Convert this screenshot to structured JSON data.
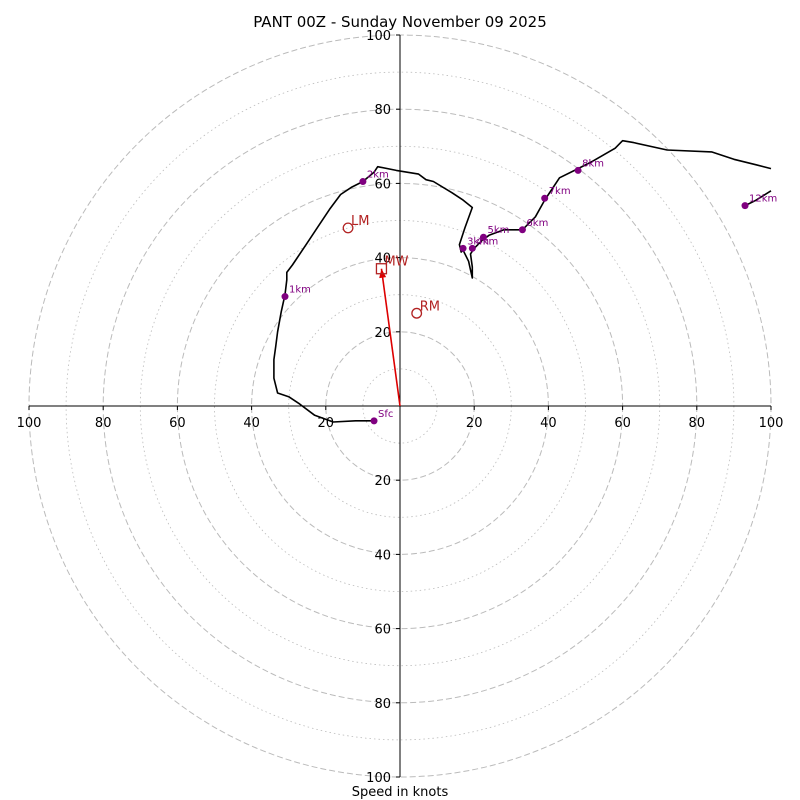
{
  "chart_data": {
    "type": "hodograph",
    "title": "PANT 00Z - Sunday November 09 2025",
    "xlabel": "Speed in knots",
    "xlim": [
      -100,
      100
    ],
    "ylim": [
      -100,
      100
    ],
    "ring_major": [
      20,
      40,
      60,
      80,
      100
    ],
    "ring_minor": [
      10,
      30,
      50,
      70,
      90
    ],
    "x_ticks": [
      -100,
      -80,
      -60,
      -40,
      -20,
      20,
      40,
      60,
      80,
      100
    ],
    "x_tick_labels": [
      "100",
      "80",
      "60",
      "40",
      "20",
      "20",
      "40",
      "60",
      "80",
      "100"
    ],
    "y_ticks": [
      -100,
      -80,
      -60,
      -40,
      -20,
      20,
      40,
      60,
      80,
      100
    ],
    "y_tick_labels": [
      "100",
      "80",
      "60",
      "40",
      "20",
      "20",
      "40",
      "60",
      "80",
      "100"
    ],
    "colors": {
      "trace": "#000000",
      "height_marker": "#800080",
      "motion": "#b22222",
      "arrow": "#dd0000",
      "grid": "#bbbbbb"
    },
    "trace": [
      [
        -7,
        -4
      ],
      [
        -12,
        -4
      ],
      [
        -18,
        -4.3
      ],
      [
        -23,
        -2.5
      ],
      [
        -27,
        0.5
      ],
      [
        -30,
        2.5
      ],
      [
        -33,
        3.5
      ],
      [
        -34,
        7.5
      ],
      [
        -34,
        12.5
      ],
      [
        -33.5,
        16
      ],
      [
        -33,
        20
      ],
      [
        -32,
        25.5
      ],
      [
        -31,
        30
      ],
      [
        -30.5,
        34
      ],
      [
        -30.5,
        36
      ],
      [
        -29,
        38
      ],
      [
        -28,
        39.5
      ],
      [
        -25,
        44
      ],
      [
        -22,
        48.5
      ],
      [
        -19,
        53
      ],
      [
        -16,
        57
      ],
      [
        -13,
        59
      ],
      [
        -10,
        60.5
      ],
      [
        -7,
        63
      ],
      [
        -6,
        64.5
      ],
      [
        -1,
        63.5
      ],
      [
        5,
        62.5
      ],
      [
        7,
        61
      ],
      [
        9,
        60.5
      ],
      [
        14,
        57.5
      ],
      [
        17,
        55.5
      ],
      [
        19.5,
        53.5
      ],
      [
        17.5,
        48
      ],
      [
        16,
        43.5
      ],
      [
        16.5,
        41.5
      ],
      [
        17,
        42
      ],
      [
        18.5,
        39
      ],
      [
        19.5,
        34.5
      ],
      [
        19.5,
        37.5
      ],
      [
        19,
        41
      ],
      [
        20,
        42.5
      ],
      [
        22,
        44.5
      ],
      [
        24,
        46
      ],
      [
        28,
        47.5
      ],
      [
        33,
        47.5
      ],
      [
        36.5,
        51
      ],
      [
        39,
        55.5
      ],
      [
        41,
        58.5
      ],
      [
        43,
        61.5
      ],
      [
        48,
        64
      ],
      [
        52,
        66
      ],
      [
        58,
        69.5
      ],
      [
        59.5,
        71
      ],
      [
        60,
        71.5
      ],
      [
        63,
        71
      ],
      [
        72,
        69
      ],
      [
        84,
        68.5
      ],
      [
        90,
        66.5
      ],
      [
        96,
        65
      ],
      [
        100,
        64
      ]
    ],
    "trace_tail": [
      [
        100,
        58
      ],
      [
        96,
        55.5
      ],
      [
        93,
        54
      ]
    ],
    "heights": [
      {
        "label": "Sfc",
        "u": -7,
        "v": -4
      },
      {
        "label": "1km",
        "u": -31,
        "v": 29.5
      },
      {
        "label": "2km",
        "u": -10,
        "v": 60.5
      },
      {
        "label": "3km",
        "u": 17,
        "v": 42.5
      },
      {
        "label": "4km",
        "u": 19.5,
        "v": 42.5
      },
      {
        "label": "5km",
        "u": 22.5,
        "v": 45.5
      },
      {
        "label": "6km",
        "u": 33,
        "v": 47.5
      },
      {
        "label": "7km",
        "u": 39,
        "v": 56
      },
      {
        "label": "8km",
        "u": 48,
        "v": 63.5
      },
      {
        "label": "12km",
        "u": 93,
        "v": 54
      }
    ],
    "storm_motion": [
      {
        "label": "LM",
        "u": -14,
        "v": 48,
        "marker": "circle"
      },
      {
        "label": "MW",
        "u": -5,
        "v": 37,
        "marker": "square"
      },
      {
        "label": "RM",
        "u": 4.5,
        "v": 25,
        "marker": "circle"
      }
    ],
    "mean_wind_arrow": {
      "from": [
        0,
        0
      ],
      "to": [
        -5,
        37
      ]
    }
  }
}
